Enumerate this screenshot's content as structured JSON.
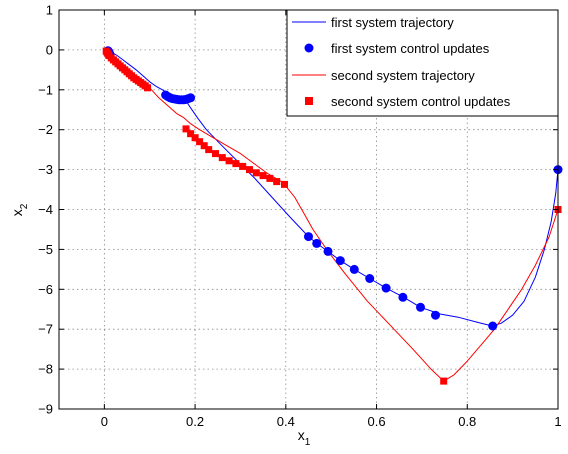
{
  "chart_data": {
    "type": "line",
    "title": "",
    "xlabel": "x",
    "xlabel_sub": "1",
    "ylabel": "x",
    "ylabel_sub": "2",
    "xlim": [
      -0.1,
      1.0
    ],
    "ylim": [
      -9,
      1
    ],
    "xticks": [
      0,
      0.2,
      0.4,
      0.6,
      0.8,
      1
    ],
    "xtick_labels": [
      "0",
      "0.2",
      "0.4",
      "0.6",
      "0.8",
      "1"
    ],
    "yticks": [
      1,
      0,
      -1,
      -2,
      -3,
      -4,
      -5,
      -6,
      -7,
      -8,
      -9
    ],
    "ytick_labels": [
      "1",
      "0",
      "−1",
      "−2",
      "−3",
      "−4",
      "−5",
      "−6",
      "−7",
      "−8",
      "−9"
    ],
    "grid": true,
    "legend_position": "top-right",
    "legend": [
      "first system trajectory",
      "first system control updates",
      "second system trajectory",
      "second system control updates"
    ],
    "colors": {
      "first": "#0000ff",
      "second": "#ff0000"
    },
    "series": [
      {
        "name": "first system trajectory",
        "kind": "line",
        "color": "#0000ff",
        "x": [
          1.0,
          0.995,
          0.985,
          0.97,
          0.95,
          0.925,
          0.9,
          0.875,
          0.855,
          0.82,
          0.78,
          0.74,
          0.697,
          0.66,
          0.621,
          0.585,
          0.551,
          0.52,
          0.493,
          0.468,
          0.45,
          0.41,
          0.37,
          0.33,
          0.29,
          0.255,
          0.225,
          0.205,
          0.19,
          0.18,
          0.165,
          0.145,
          0.128,
          0.115,
          0.1,
          0.085,
          0.07,
          0.055,
          0.04,
          0.028,
          0.018,
          0.012,
          0.008
        ],
        "y": [
          -3.0,
          -3.6,
          -4.3,
          -5.0,
          -5.7,
          -6.3,
          -6.65,
          -6.85,
          -6.92,
          -6.82,
          -6.7,
          -6.62,
          -6.45,
          -6.2,
          -5.97,
          -5.73,
          -5.5,
          -5.28,
          -5.05,
          -4.85,
          -4.68,
          -4.2,
          -3.7,
          -3.2,
          -2.75,
          -2.35,
          -2.0,
          -1.7,
          -1.45,
          -1.28,
          -1.2,
          -1.12,
          -1.0,
          -0.92,
          -0.8,
          -0.65,
          -0.5,
          -0.37,
          -0.24,
          -0.14,
          -0.07,
          -0.03,
          -0.01
        ]
      },
      {
        "name": "first system control updates",
        "kind": "markers",
        "marker": "circle",
        "color": "#0000ff",
        "x": [
          1.0,
          0.856,
          0.73,
          0.697,
          0.658,
          0.621,
          0.585,
          0.551,
          0.52,
          0.493,
          0.468,
          0.45,
          0.19,
          0.185,
          0.18,
          0.175,
          0.17,
          0.165,
          0.16,
          0.155,
          0.15,
          0.145,
          0.14,
          0.135,
          0.012,
          0.01,
          0.008
        ],
        "y": [
          -3.0,
          -6.92,
          -6.65,
          -6.45,
          -6.2,
          -5.97,
          -5.73,
          -5.5,
          -5.28,
          -5.05,
          -4.85,
          -4.68,
          -1.2,
          -1.22,
          -1.24,
          -1.25,
          -1.25,
          -1.25,
          -1.24,
          -1.23,
          -1.22,
          -1.2,
          -1.17,
          -1.13,
          -0.1,
          -0.05,
          -0.02
        ]
      },
      {
        "name": "second system trajectory",
        "kind": "line",
        "color": "#ff0000",
        "x": [
          1.0,
          0.98,
          0.95,
          0.92,
          0.89,
          0.86,
          0.83,
          0.8,
          0.77,
          0.748,
          0.72,
          0.68,
          0.63,
          0.58,
          0.53,
          0.49,
          0.46,
          0.44,
          0.42,
          0.397,
          0.39,
          0.36,
          0.33,
          0.3,
          0.27,
          0.24,
          0.21,
          0.19,
          0.175,
          0.16,
          0.14,
          0.12,
          0.1,
          0.095,
          0.09,
          0.08,
          0.07,
          0.06,
          0.05,
          0.04,
          0.03,
          0.02,
          0.01,
          0.005
        ],
        "y": [
          -4.0,
          -4.7,
          -5.4,
          -6.0,
          -6.5,
          -7.0,
          -7.4,
          -7.8,
          -8.15,
          -8.3,
          -8.0,
          -7.5,
          -6.9,
          -6.3,
          -5.6,
          -5.0,
          -4.5,
          -4.1,
          -3.7,
          -3.37,
          -3.3,
          -3.1,
          -2.85,
          -2.6,
          -2.4,
          -2.2,
          -2.0,
          -1.85,
          -1.7,
          -1.6,
          -1.4,
          -1.2,
          -0.95,
          -0.9,
          -0.85,
          -0.78,
          -0.7,
          -0.6,
          -0.5,
          -0.4,
          -0.3,
          -0.2,
          -0.08,
          -0.02
        ]
      },
      {
        "name": "second system control updates",
        "kind": "markers",
        "marker": "square",
        "color": "#ff0000",
        "x": [
          1.0,
          0.748,
          0.397,
          0.38,
          0.365,
          0.35,
          0.335,
          0.32,
          0.305,
          0.29,
          0.275,
          0.26,
          0.245,
          0.23,
          0.22,
          0.21,
          0.2,
          0.19,
          0.18,
          0.095,
          0.09,
          0.085,
          0.08,
          0.075,
          0.07,
          0.065,
          0.06,
          0.055,
          0.05,
          0.045,
          0.04,
          0.035,
          0.03,
          0.025,
          0.02,
          0.015,
          0.01,
          0.008,
          0.006,
          0.004
        ],
        "y": [
          -4.0,
          -8.3,
          -3.37,
          -3.3,
          -3.22,
          -3.15,
          -3.08,
          -3.0,
          -2.92,
          -2.85,
          -2.78,
          -2.7,
          -2.6,
          -2.5,
          -2.4,
          -2.3,
          -2.2,
          -2.1,
          -1.98,
          -0.95,
          -0.9,
          -0.86,
          -0.82,
          -0.78,
          -0.74,
          -0.7,
          -0.65,
          -0.6,
          -0.55,
          -0.5,
          -0.45,
          -0.4,
          -0.35,
          -0.3,
          -0.25,
          -0.2,
          -0.14,
          -0.1,
          -0.06,
          -0.03
        ]
      }
    ]
  }
}
